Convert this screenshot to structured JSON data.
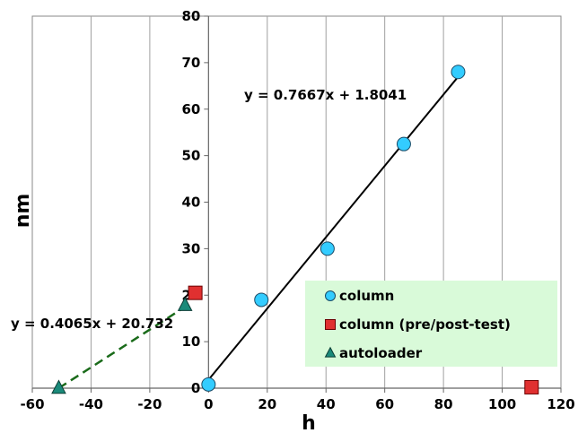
{
  "chart_data": {
    "type": "scatter",
    "title": "",
    "xlabel": "h",
    "ylabel": "nm",
    "xlim": [
      -60,
      120
    ],
    "ylim": [
      0,
      80
    ],
    "x_ticks": [
      -60,
      -40,
      -20,
      0,
      20,
      40,
      60,
      80,
      100,
      120
    ],
    "y_ticks": [
      0,
      10,
      20,
      30,
      40,
      50,
      60,
      70,
      80
    ],
    "grid": "vertical",
    "legend_position": "lower-right",
    "series": [
      {
        "name": "column",
        "marker": "circle",
        "color": "#33ccff",
        "points": [
          [
            0,
            0.8
          ],
          [
            18,
            19
          ],
          [
            40.5,
            30
          ],
          [
            66.5,
            52.5
          ],
          [
            85,
            68
          ]
        ]
      },
      {
        "name": "column (pre/post-test)",
        "marker": "square",
        "color": "#e03030",
        "points": [
          [
            -4.5,
            20.5
          ],
          [
            110,
            0.2
          ]
        ]
      },
      {
        "name": "autoloader",
        "marker": "triangle",
        "color": "#1a8a7a",
        "points": [
          [
            -51,
            0
          ],
          [
            -8,
            17.8
          ]
        ]
      }
    ],
    "trendlines": [
      {
        "series": "column",
        "slope": 0.7667,
        "intercept": 1.8041,
        "x_range": [
          0,
          85
        ],
        "style": "solid",
        "color": "#000000",
        "label": "y = 0.7667x + 1.8041"
      },
      {
        "series": "autoloader",
        "slope": 0.4065,
        "intercept": 20.732,
        "x_range": [
          -51,
          -8
        ],
        "style": "dashed",
        "color": "#1a6b1a",
        "label": "y = 0.4065x + 20.732"
      }
    ],
    "legend_bg": "#d9fad9"
  }
}
